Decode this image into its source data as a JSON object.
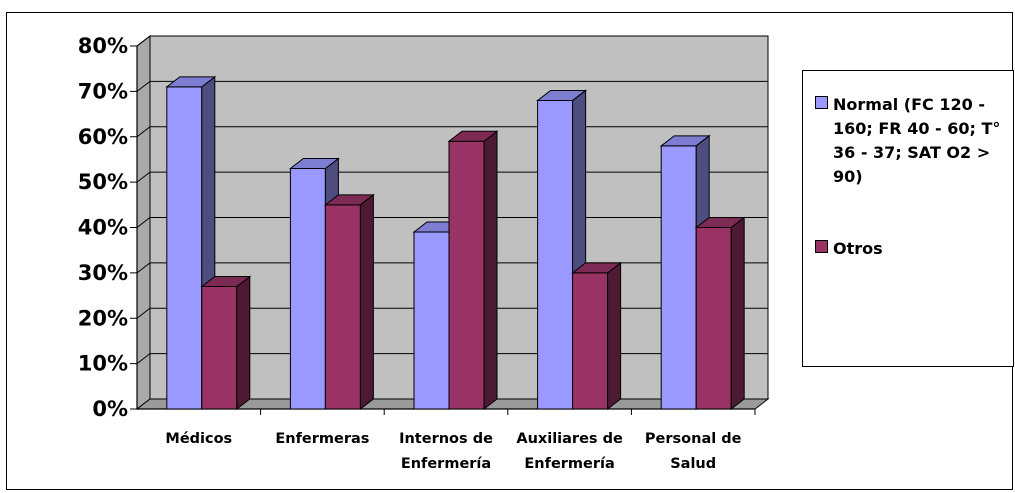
{
  "chart_data": {
    "type": "bar",
    "categories": [
      [
        "Médicos"
      ],
      [
        "Enfermeras"
      ],
      [
        "Internos de",
        "Enfermería"
      ],
      [
        "Auxiliares de",
        "Enfermería"
      ],
      [
        "Personal de",
        "Salud"
      ]
    ],
    "series": [
      {
        "name": "Normal (FC 120 - 160; FR 40 - 60; T° 36 - 37; SAT O2 > 90)",
        "values": [
          71,
          53,
          39,
          68,
          58
        ],
        "color": "#9999FF"
      },
      {
        "name": "Otros",
        "values": [
          27,
          45,
          59,
          30,
          40
        ],
        "color": "#993366"
      }
    ],
    "yticks": [
      "0%",
      "10%",
      "20%",
      "30%",
      "40%",
      "50%",
      "60%",
      "70%",
      "80%"
    ],
    "ylim": [
      0,
      80
    ],
    "grid": true,
    "legend_position": "right",
    "plot_background": "#C0C0C0",
    "title": "",
    "xlabel": "",
    "ylabel": ""
  }
}
